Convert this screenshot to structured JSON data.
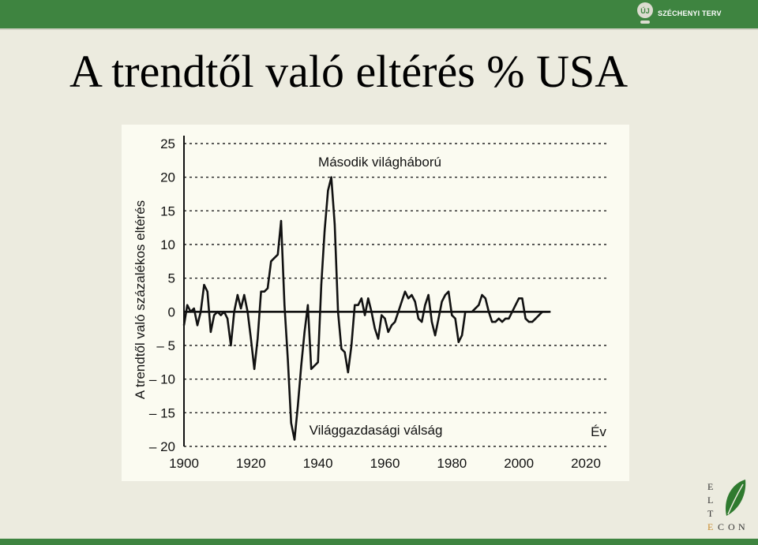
{
  "slide": {
    "title": "A trendtől való eltérés % USA"
  },
  "logos": {
    "szechenyi": {
      "badge": "ÚJ",
      "text": "SZÉCHENYI TERV"
    },
    "elte": {
      "letters": [
        "E",
        "L",
        "T",
        "E",
        "C",
        "O",
        "N"
      ]
    }
  },
  "colors": {
    "brand_green": "#3e8440",
    "line": "#111111",
    "grid": "#222222"
  },
  "chart_data": {
    "type": "line",
    "ylabel": "A trendtől való százalékos eltérés",
    "xlabel": "Év",
    "xlim": [
      1900,
      2020
    ],
    "ylim": [
      -20,
      25
    ],
    "xticks": [
      "1900",
      "1920",
      "1940",
      "1960",
      "1980",
      "2000",
      "2020"
    ],
    "yticks": [
      "25",
      "20",
      "15",
      "10",
      "5",
      "0",
      "– 5",
      "– 10",
      "– 15",
      "– 20"
    ],
    "grid": "horizontal dotted",
    "annotations": [
      {
        "text": "Második világháború",
        "x": 1944,
        "y": 20
      },
      {
        "text": "Világgazdasági válság",
        "x": 1933,
        "y": -19
      }
    ],
    "series": [
      {
        "x": [
          1900,
          1901,
          1902,
          1903,
          1904,
          1905,
          1906,
          1907,
          1908,
          1909,
          1910,
          1911,
          1912,
          1913,
          1914,
          1915,
          1916,
          1917,
          1918,
          1919,
          1920,
          1921,
          1922,
          1923,
          1924,
          1925,
          1926,
          1927,
          1928,
          1929,
          1930,
          1931,
          1932,
          1933,
          1934,
          1935,
          1936,
          1937,
          1938,
          1939,
          1940,
          1941,
          1942,
          1943,
          1944,
          1945,
          1946,
          1947,
          1948,
          1949,
          1950,
          1951,
          1952,
          1953,
          1954,
          1955,
          1956,
          1957,
          1958,
          1959,
          1960,
          1961,
          1962,
          1963,
          1964,
          1965,
          1966,
          1967,
          1968,
          1969,
          1970,
          1971,
          1972,
          1973,
          1974,
          1975,
          1976,
          1977,
          1978,
          1979,
          1980,
          1981,
          1982,
          1983,
          1984,
          1985,
          1986,
          1987,
          1988,
          1989,
          1990,
          1991,
          1992,
          1993,
          1994,
          1995,
          1996,
          1997,
          1998,
          1999,
          2000,
          2001,
          2002,
          2003,
          2004,
          2005,
          2006,
          2007,
          2008,
          2009
        ],
        "values": [
          -2,
          1,
          0,
          0.5,
          -2,
          0,
          4,
          3,
          -3,
          -0.5,
          0,
          -0.5,
          0,
          -1,
          -5,
          0,
          2.5,
          0.5,
          2.5,
          0,
          -4,
          -8.5,
          -4,
          3,
          3,
          3.5,
          7.5,
          8,
          8.5,
          13.5,
          1,
          -7,
          -16.5,
          -19,
          -14,
          -8,
          -3,
          1,
          -8.5,
          -8,
          -7.5,
          4,
          12,
          18,
          20,
          13,
          0,
          -5.5,
          -6,
          -9,
          -5,
          1,
          1,
          2,
          -0.5,
          2,
          0,
          -2.5,
          -4,
          -0.5,
          -1,
          -3,
          -2,
          -1.5,
          0,
          1.5,
          3,
          2,
          2.5,
          1.5,
          -1,
          -1.5,
          1,
          2.5,
          -1.5,
          -3.5,
          -1,
          1.5,
          2.5,
          3,
          -0.5,
          -1,
          -4.5,
          -3.5,
          0,
          0,
          0,
          0.5,
          1,
          2.5,
          2,
          0,
          -1.5,
          -1.5,
          -1,
          -1.5,
          -1,
          -1,
          0,
          1,
          2,
          2,
          -1,
          -1.5,
          -1.5,
          -1,
          -0.5,
          0,
          0,
          0
        ]
      }
    ]
  }
}
